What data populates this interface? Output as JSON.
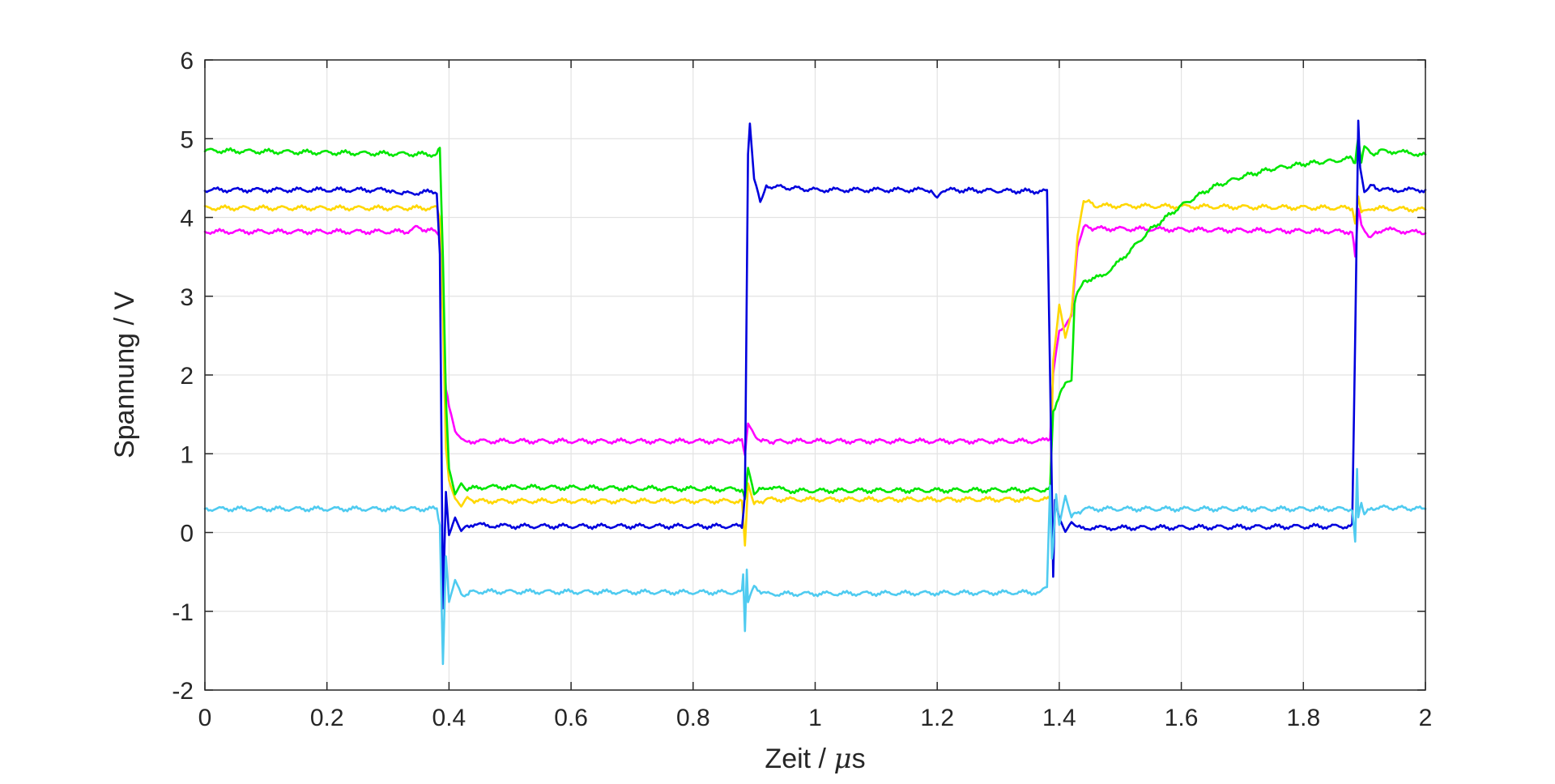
{
  "chart_data": {
    "type": "line",
    "title": "",
    "xlabel_prefix": "Zeit / ",
    "xlabel_symbol": "μ",
    "xlabel_suffix": "s",
    "ylabel": "Spannung / V",
    "xlim": [
      0,
      2
    ],
    "ylim": [
      -2,
      6
    ],
    "xticks": [
      0,
      0.2,
      0.4,
      0.6,
      0.8,
      1,
      1.2,
      1.4,
      1.6,
      1.8,
      2
    ],
    "xtick_labels": [
      "0",
      "0.2",
      "0.4",
      "0.6",
      "0.8",
      "1",
      "1.2",
      "1.4",
      "1.6",
      "1.8",
      "2"
    ],
    "yticks": [
      -2,
      -1,
      0,
      1,
      2,
      3,
      4,
      5,
      6
    ],
    "ytick_labels": [
      "-2",
      "-1",
      "0",
      "1",
      "2",
      "3",
      "4",
      "5",
      "6"
    ],
    "grid": true,
    "series": [
      {
        "color": "#ff00ff",
        "x": [
          0,
          0.33,
          0.345,
          0.38,
          0.385,
          0.39,
          0.395,
          0.4,
          0.41,
          0.42,
          0.43,
          0.88,
          0.885,
          0.89,
          0.9,
          0.92,
          0.94,
          1.37,
          1.385,
          1.39,
          1.4,
          1.41,
          1.42,
          1.43,
          1.44,
          1.46,
          1.88,
          1.885,
          1.89,
          1.895,
          1.91,
          1.93,
          2
        ],
        "y": [
          3.82,
          3.82,
          3.87,
          3.82,
          3.8,
          2.8,
          1.8,
          1.6,
          1.3,
          1.18,
          1.16,
          1.16,
          1.0,
          1.38,
          1.22,
          1.15,
          1.16,
          1.16,
          1.2,
          2.0,
          2.55,
          2.6,
          2.75,
          3.6,
          3.88,
          3.86,
          3.82,
          3.5,
          4.1,
          3.9,
          3.75,
          3.85,
          3.8
        ]
      },
      {
        "color": "#ffd700",
        "x": [
          0,
          0.38,
          0.385,
          0.39,
          0.395,
          0.4,
          0.41,
          0.42,
          0.43,
          0.45,
          0.88,
          0.885,
          0.89,
          0.9,
          0.92,
          1.37,
          1.385,
          1.39,
          1.4,
          1.41,
          1.42,
          1.43,
          1.44,
          1.46,
          1.88,
          1.885,
          1.89,
          1.895,
          1.91,
          2
        ],
        "y": [
          4.12,
          4.12,
          4.0,
          2.7,
          1.1,
          0.65,
          0.4,
          0.32,
          0.42,
          0.4,
          0.4,
          -0.15,
          0.6,
          0.36,
          0.42,
          0.42,
          0.42,
          2.2,
          2.9,
          2.5,
          2.8,
          3.8,
          4.22,
          4.15,
          4.12,
          3.9,
          4.3,
          4.05,
          4.12,
          4.1
        ]
      },
      {
        "color": "#00e600",
        "x": [
          0,
          0.38,
          0.385,
          0.39,
          0.395,
          0.4,
          0.41,
          0.42,
          0.43,
          0.46,
          0.88,
          0.885,
          0.89,
          0.9,
          0.92,
          0.96,
          1.37,
          1.385,
          1.39,
          1.41,
          1.42,
          1.425,
          1.43,
          1.44,
          1.47,
          1.5,
          1.55,
          1.6,
          1.65,
          1.7,
          1.75,
          1.8,
          1.85,
          1.88,
          1.885,
          1.89,
          1.895,
          1.9,
          1.91,
          1.93,
          2
        ],
        "y": [
          4.85,
          4.8,
          4.9,
          3.5,
          1.7,
          0.8,
          0.5,
          0.62,
          0.55,
          0.58,
          0.55,
          0.4,
          0.85,
          0.5,
          0.58,
          0.53,
          0.54,
          0.56,
          1.55,
          1.9,
          1.95,
          2.9,
          3.05,
          3.2,
          3.25,
          3.45,
          3.85,
          4.15,
          4.38,
          4.52,
          4.62,
          4.68,
          4.72,
          4.75,
          4.7,
          5.0,
          4.7,
          4.9,
          4.8,
          4.85,
          4.8
        ]
      },
      {
        "color": "#0000dd",
        "x": [
          0,
          0.31,
          0.32,
          0.38,
          0.385,
          0.39,
          0.395,
          0.4,
          0.41,
          0.42,
          0.43,
          0.5,
          0.88,
          0.885,
          0.89,
          0.893,
          0.9,
          0.91,
          0.92,
          1.0,
          1.19,
          1.2,
          1.21,
          1.38,
          1.385,
          1.39,
          1.393,
          1.4,
          1.41,
          1.42,
          1.43,
          1.5,
          1.88,
          1.885,
          1.89,
          1.893,
          1.9,
          1.91,
          1.93,
          2
        ],
        "y": [
          4.35,
          4.35,
          4.3,
          4.33,
          3.5,
          -0.95,
          0.5,
          0.0,
          0.2,
          0.05,
          0.1,
          0.08,
          0.08,
          0.5,
          4.8,
          5.22,
          4.5,
          4.2,
          4.4,
          4.35,
          4.35,
          4.28,
          4.35,
          4.33,
          2.0,
          -0.57,
          0.4,
          0.15,
          0.0,
          0.1,
          0.06,
          0.06,
          0.08,
          2.5,
          5.22,
          4.6,
          4.3,
          4.4,
          4.35,
          4.35
        ]
      },
      {
        "color": "#4fcbf0",
        "x": [
          0,
          0.38,
          0.385,
          0.388,
          0.39,
          0.395,
          0.4,
          0.41,
          0.42,
          0.44,
          0.88,
          0.882,
          0.885,
          0.888,
          0.89,
          0.9,
          0.92,
          1.37,
          1.38,
          1.385,
          1.388,
          1.39,
          1.395,
          1.4,
          1.41,
          1.42,
          1.44,
          1.88,
          1.885,
          1.888,
          1.89,
          1.895,
          1.9,
          1.92,
          2
        ],
        "y": [
          0.3,
          0.3,
          0.1,
          -1.0,
          -1.66,
          -0.3,
          -0.9,
          -0.6,
          -0.8,
          -0.75,
          -0.76,
          -0.5,
          -1.24,
          -0.45,
          -0.9,
          -0.7,
          -0.78,
          -0.76,
          -0.7,
          0.6,
          -0.3,
          -0.2,
          0.5,
          0.1,
          0.45,
          0.2,
          0.3,
          0.3,
          -0.12,
          0.8,
          0.2,
          0.35,
          0.25,
          0.32,
          0.3
        ]
      }
    ]
  }
}
